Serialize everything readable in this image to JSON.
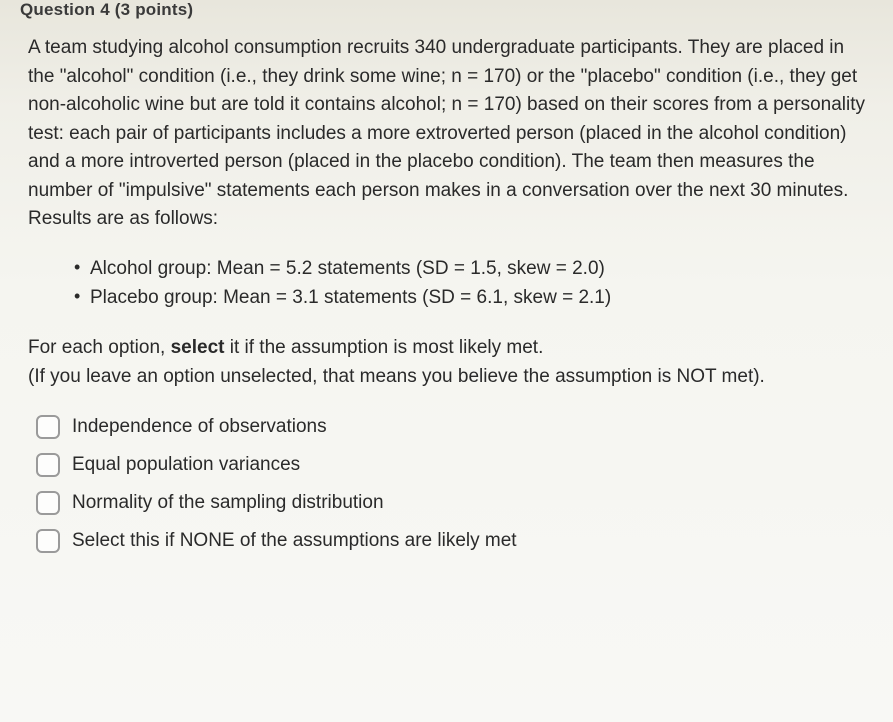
{
  "header": "Question 4 (3 points)",
  "body": "A team studying alcohol consumption recruits 340 undergraduate participants. They are placed in  the \"alcohol\" condition (i.e., they drink some wine; n = 170) or the \"placebo\" condition (i.e., they get non-alcoholic wine but are told it contains alcohol; n = 170) based on their scores from a personality test: each pair of participants includes a more extroverted person (placed in the alcohol condition) and a more introverted person (placed in the placebo condition). The team then measures the number of \"impulsive\" statements each person makes in a conversation over the next 30 minutes. Results are as follows:",
  "bullets": {
    "b1": "Alcohol group: Mean = 5.2 statements (SD = 1.5, skew = 2.0)",
    "b2": "Placebo group: Mean = 3.1 statements (SD = 6.1, skew = 2.1)"
  },
  "instructions_line1": "For each option, select it if the assumption is most likely met.",
  "instructions_line2": "(If you leave an option unselected, that means you believe the assumption is NOT met).",
  "options": {
    "o1": "Independence of observations",
    "o2": "Equal population variances",
    "o3": "Normality of the sampling distribution",
    "o4": "Select this if NONE of the assumptions are likely met"
  },
  "colors": {
    "text": "#2a2a2a",
    "checkbox_border": "#9a9a9a",
    "checkbox_bg": "#fdfdfc"
  }
}
